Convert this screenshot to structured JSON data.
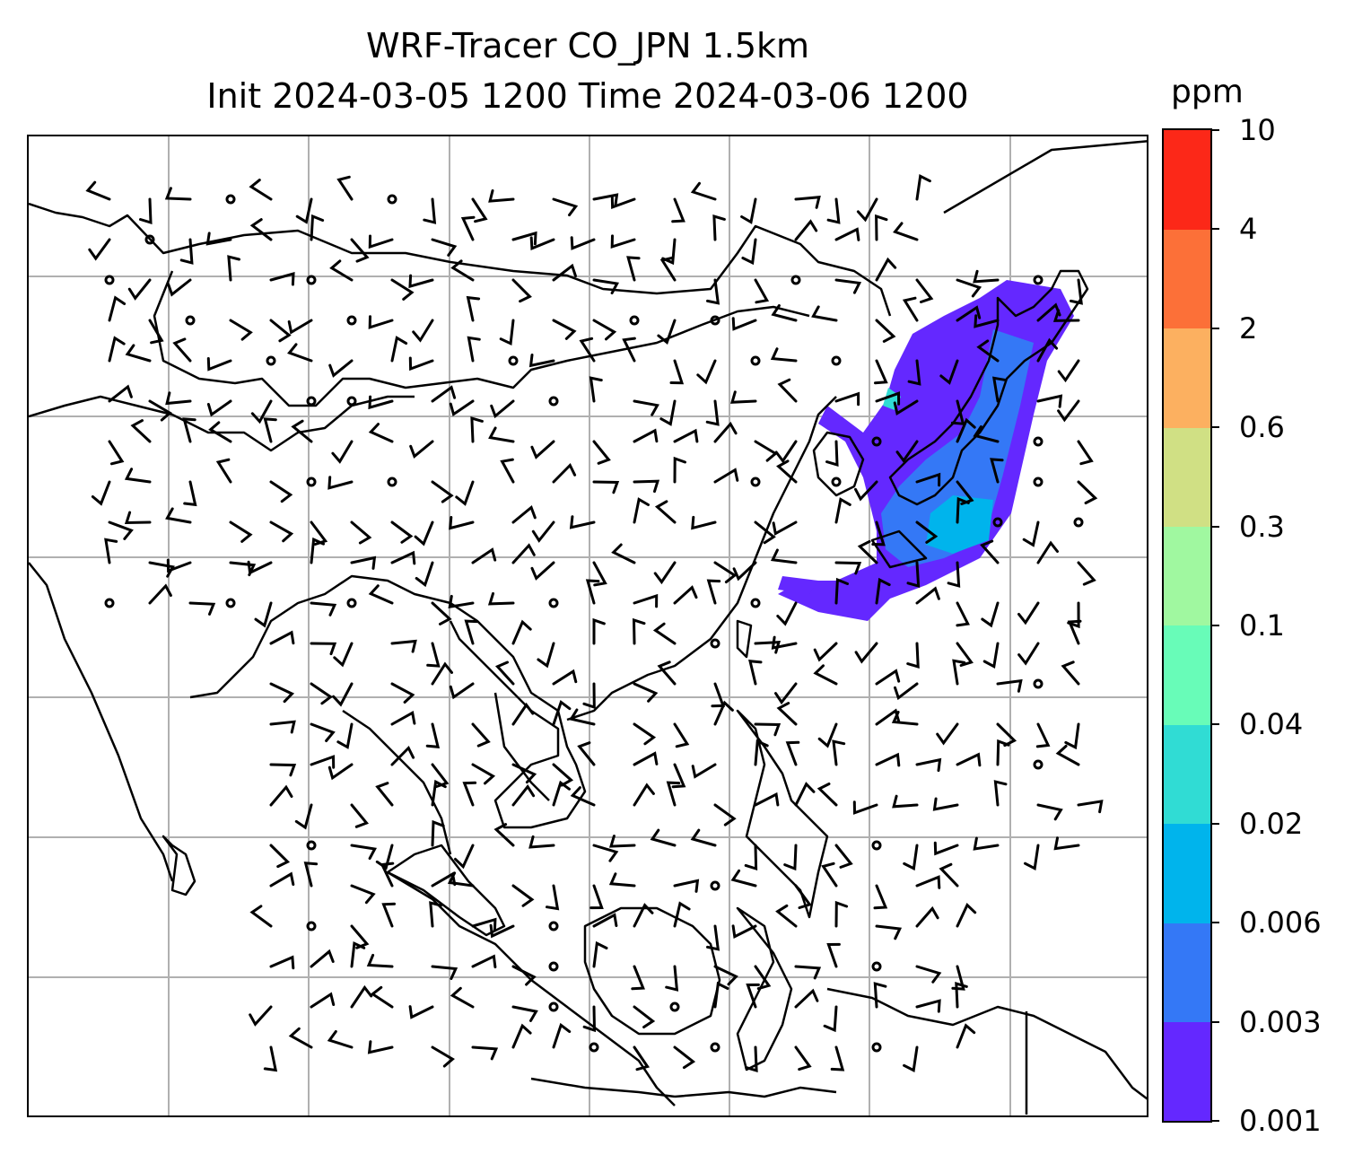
{
  "title": {
    "line1": "WRF-Tracer CO_JPN 1.5km",
    "line2": "Init 2024-03-05 1200 Time 2024-03-06 1200"
  },
  "colorbar": {
    "unit": "ppm",
    "levels": [
      "0.001",
      "0.003",
      "0.006",
      "0.02",
      "0.04",
      "0.1",
      "0.3",
      "0.6",
      "2",
      "4",
      "10"
    ],
    "colors": [
      "#6428ff",
      "#3478f6",
      "#00b4ec",
      "#30dcd4",
      "#68fcb8",
      "#a0f8a0",
      "#d0e084",
      "#fcb060",
      "#fc7038",
      "#fc2818"
    ]
  },
  "map": {
    "gridlines": true,
    "field": "CO tracer concentration with wind barbs",
    "plume_colors": [
      "#6428ff",
      "#3478f6",
      "#00b4ec",
      "#30dcd4"
    ]
  }
}
